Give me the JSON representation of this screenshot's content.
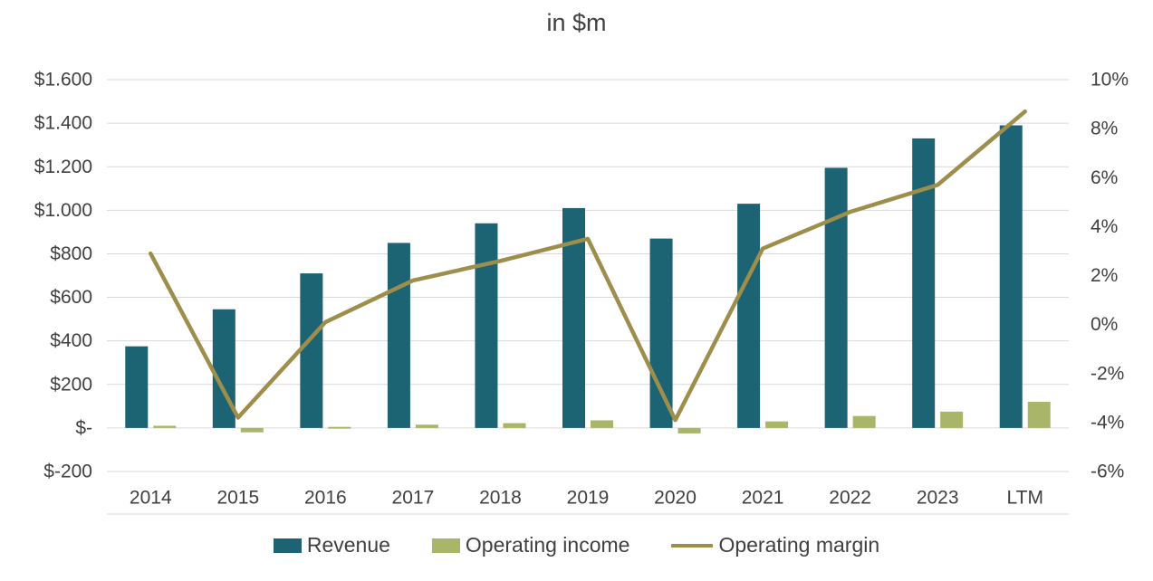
{
  "chart": {
    "title": "in $m",
    "text_color": "#404040",
    "gridline_color": "#d9d9d9",
    "legend": [
      {
        "label": "Revenue",
        "marker": "bar",
        "color": "#1c6374"
      },
      {
        "label": "Operating income",
        "marker": "bar",
        "color": "#a9b568"
      },
      {
        "label": "Operating margin",
        "marker": "line",
        "color": "#9d8e4b"
      }
    ]
  },
  "chart_data": {
    "type": "bar",
    "combo": "bar+line dual axis",
    "title": "in $m",
    "categories": [
      "2014",
      "2015",
      "2016",
      "2017",
      "2018",
      "2019",
      "2020",
      "2021",
      "2022",
      "2023",
      "LTM"
    ],
    "series": [
      {
        "name": "Revenue",
        "type": "bar",
        "axis": "left",
        "color": "#1c6374",
        "values": [
          375,
          545,
          710,
          850,
          940,
          1010,
          870,
          1030,
          1195,
          1330,
          1390
        ]
      },
      {
        "name": "Operating income",
        "type": "bar",
        "axis": "left",
        "color": "#a9b568",
        "values": [
          10,
          -20,
          5,
          15,
          22,
          35,
          -25,
          30,
          55,
          75,
          120
        ]
      },
      {
        "name": "Operating margin",
        "type": "line",
        "axis": "right",
        "color": "#9d8e4b",
        "values": [
          2.9,
          -3.8,
          0.1,
          1.8,
          2.6,
          3.5,
          -3.9,
          3.1,
          4.6,
          5.7,
          8.7
        ]
      }
    ],
    "left_axis": {
      "min": -200,
      "max": 1600,
      "step": 200,
      "tick_labels": [
        "$1.600",
        "$1.400",
        "$1.200",
        "$1.000",
        "$800",
        "$600",
        "$400",
        "$200",
        "$-",
        "$-200"
      ]
    },
    "right_axis": {
      "min": -6,
      "max": 10,
      "step": 2,
      "tick_labels": [
        "10%",
        "8%",
        "6%",
        "4%",
        "2%",
        "0%",
        "-2%",
        "-4%",
        "-6%"
      ]
    },
    "grid": true,
    "legend_position": "bottom"
  }
}
